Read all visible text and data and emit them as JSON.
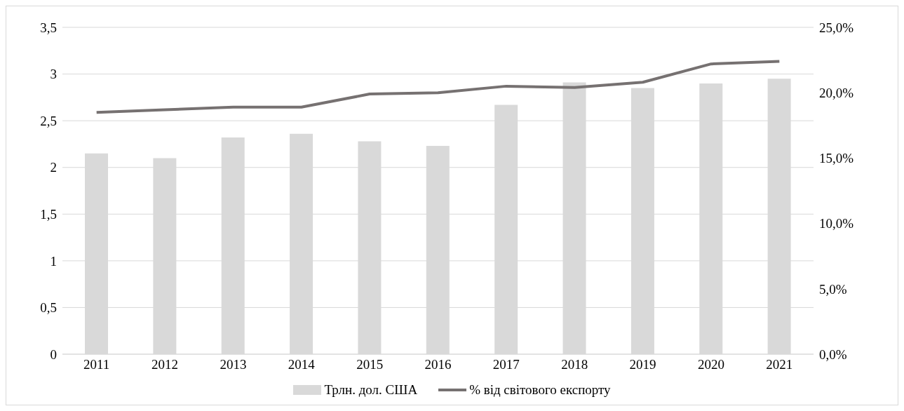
{
  "chart_data": {
    "type": "bar",
    "categories": [
      "2011",
      "2012",
      "2013",
      "2014",
      "2015",
      "2016",
      "2017",
      "2018",
      "2019",
      "2020",
      "2021"
    ],
    "series": [
      {
        "name": "Трлн. дол. США",
        "color": "#d9d9d9",
        "values": [
          2.15,
          2.1,
          2.32,
          2.36,
          2.28,
          2.23,
          2.67,
          2.91,
          2.85,
          2.9,
          2.95
        ]
      },
      {
        "name": "% від світового експорту",
        "type": "line",
        "axis": "y2",
        "color": "#767171",
        "values": [
          18.5,
          18.7,
          18.9,
          18.9,
          19.9,
          20.0,
          20.5,
          20.4,
          20.8,
          22.2,
          22.4
        ]
      }
    ],
    "ylim": [
      0,
      3.5
    ],
    "yticks": [
      0,
      {
        "value": 0.5,
        "label": "0,5"
      },
      1,
      {
        "value": 1.5,
        "label": "1,5"
      },
      2,
      {
        "value": 2.5,
        "label": "2,5"
      },
      3,
      {
        "value": 3.5,
        "label": "3,5"
      }
    ],
    "y2lim": [
      0,
      25
    ],
    "y2ticks": [
      {
        "value": 0,
        "label": "0,0%"
      },
      {
        "value": 5,
        "label": "5,0%"
      },
      {
        "value": 10,
        "label": "10,0%"
      },
      {
        "value": 15,
        "label": "15,0%"
      },
      {
        "value": 20,
        "label": "20,0%"
      },
      {
        "value": 25,
        "label": "25,0%"
      }
    ],
    "grid": "y",
    "legend": "bottom",
    "marker": "none",
    "line_style": "solid"
  }
}
